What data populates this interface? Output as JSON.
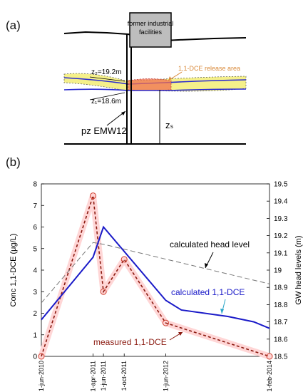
{
  "panel_a": {
    "label": "(a)",
    "facility_label_1": "former industrial",
    "facility_label_2": "facilities",
    "release_label": "1,1-DCE release area",
    "z2_label": "z₂=19.2m",
    "z1_label": "z₁=18.6m",
    "well_label": "pz EMW12",
    "zs_label": "zₛ",
    "colors": {
      "yellow_band": "#f5f08a",
      "release": "#f07050",
      "blue_line": "#2a2ad0",
      "release_text": "#d98a3a"
    }
  },
  "panel_b": {
    "label": "(b)",
    "annotation_head": "calculated head level",
    "annotation_calc": "calculated 1,1-DCE",
    "annotation_meas": "measured 1,1-DCE"
  },
  "chart_data": {
    "type": "line",
    "xlabel": "",
    "ylabel": "Conc 1,1-DCE (μg/L)",
    "y2label": "GW head levels (m)",
    "x_ticks": [
      "1-jun-2010",
      "1-apr-2011",
      "1-jun-2011",
      "1-oct-2011",
      "1-jun-2012",
      "1-feb-2014"
    ],
    "ylim": [
      0,
      8
    ],
    "y_ticks": [
      "0",
      "1",
      "2",
      "3",
      "4",
      "5",
      "6",
      "7",
      "8"
    ],
    "y2lim": [
      18.5,
      19.5
    ],
    "y2_ticks": [
      "18.5",
      "18.6",
      "18.7",
      "18.8",
      "18.9",
      "19",
      "19.1",
      "19.2",
      "19.3",
      "19.4",
      "19.5"
    ],
    "series": [
      {
        "name": "measured 1,1-DCE",
        "axis": "left",
        "color": "#8b1a10",
        "style": "dashed-markers",
        "x": [
          "1-jun-2010",
          "1-apr-2011",
          "1-jun-2011",
          "1-oct-2011",
          "1-jun-2012",
          "1-feb-2014"
        ],
        "y": [
          0,
          7.45,
          3.0,
          4.5,
          1.55,
          0
        ]
      },
      {
        "name": "calculated 1,1-DCE",
        "axis": "left",
        "color": "#1a1ac8",
        "style": "solid",
        "x": [
          "1-jun-2010",
          "1-apr-2011",
          "1-jun-2011",
          "1-jun-2012",
          "1-sep-2012",
          "1-jun-2013",
          "1-nov-2013",
          "1-feb-2014"
        ],
        "y": [
          1.7,
          4.6,
          6.0,
          2.6,
          2.15,
          1.85,
          1.6,
          1.3
        ]
      },
      {
        "name": "calculated head level",
        "axis": "right",
        "color": "#777777",
        "style": "dashed",
        "x": [
          "1-jun-2010",
          "1-apr-2011",
          "1-jun-2011",
          "1-feb-2014"
        ],
        "y": [
          18.81,
          19.16,
          19.15,
          18.92
        ]
      }
    ]
  }
}
